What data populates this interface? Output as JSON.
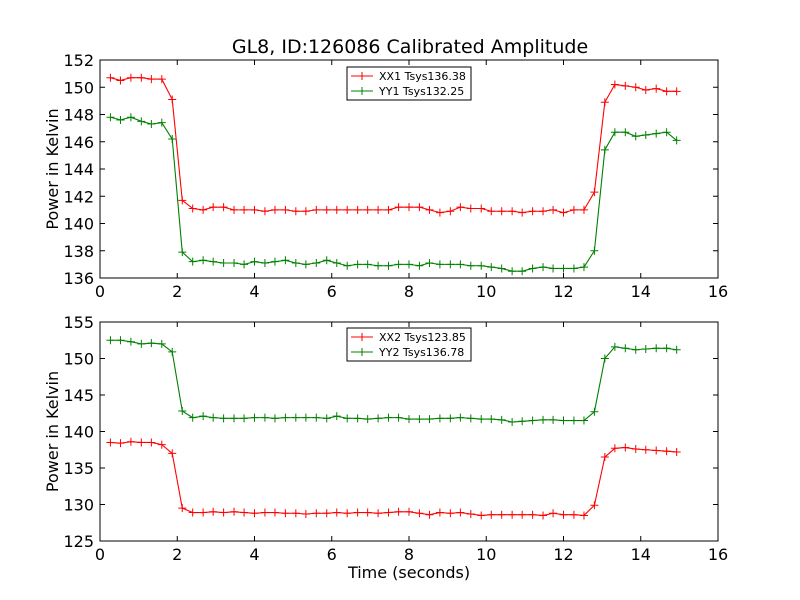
{
  "title": "GL8, ID:126086 Calibrated Amplitude",
  "chart_data": [
    {
      "type": "line",
      "title": "GL8, ID:126086 Calibrated Amplitude",
      "xlabel": "",
      "ylabel": "Power in Kelvin",
      "xlim": [
        0,
        16
      ],
      "ylim": [
        136,
        152
      ],
      "xticks": [
        "0",
        "2",
        "4",
        "6",
        "8",
        "10",
        "12",
        "14",
        "16"
      ],
      "yticks": [
        "136",
        "138",
        "140",
        "142",
        "144",
        "146",
        "148",
        "150",
        "152"
      ],
      "grid": false,
      "legend": "top-center",
      "x": [
        0.27,
        0.53,
        0.8,
        1.07,
        1.33,
        1.6,
        1.87,
        2.13,
        2.4,
        2.67,
        2.93,
        3.2,
        3.47,
        3.73,
        4.0,
        4.27,
        4.53,
        4.8,
        5.07,
        5.33,
        5.6,
        5.87,
        6.13,
        6.4,
        6.67,
        6.93,
        7.2,
        7.47,
        7.73,
        8.0,
        8.27,
        8.53,
        8.8,
        9.07,
        9.33,
        9.6,
        9.87,
        10.13,
        10.4,
        10.67,
        10.93,
        11.2,
        11.47,
        11.73,
        12.0,
        12.27,
        12.53,
        12.8,
        13.07,
        13.33,
        13.6,
        13.87,
        14.13,
        14.4,
        14.67,
        14.93
      ],
      "series": [
        {
          "name": "XX1 Tsys136.38",
          "color": "#ff0000",
          "values": [
            150.7,
            150.5,
            150.7,
            150.7,
            150.6,
            150.6,
            149.1,
            141.7,
            141.1,
            141.0,
            141.2,
            141.2,
            141.0,
            141.0,
            141.0,
            140.9,
            141.0,
            141.0,
            140.9,
            140.9,
            141.0,
            141.0,
            141.0,
            141.0,
            141.0,
            141.0,
            141.0,
            141.0,
            141.2,
            141.2,
            141.2,
            141.0,
            140.8,
            140.9,
            141.2,
            141.1,
            141.1,
            140.9,
            140.9,
            140.9,
            140.8,
            140.9,
            140.9,
            141.0,
            140.8,
            141.0,
            141.0,
            142.3,
            148.9,
            150.2,
            150.1,
            150.0,
            149.8,
            149.9,
            149.7,
            149.7
          ]
        },
        {
          "name": "YY1 Tsys132.25",
          "color": "#008000",
          "values": [
            147.8,
            147.6,
            147.8,
            147.5,
            147.3,
            147.4,
            146.2,
            137.9,
            137.2,
            137.3,
            137.2,
            137.1,
            137.1,
            137.0,
            137.2,
            137.1,
            137.2,
            137.3,
            137.1,
            137.0,
            137.1,
            137.3,
            137.1,
            136.9,
            137.0,
            137.0,
            136.9,
            136.9,
            137.0,
            137.0,
            136.9,
            137.1,
            137.0,
            137.0,
            137.0,
            136.9,
            136.9,
            136.8,
            136.7,
            136.5,
            136.5,
            136.7,
            136.8,
            136.7,
            136.7,
            136.7,
            136.8,
            138.0,
            145.4,
            146.7,
            146.7,
            146.4,
            146.5,
            146.6,
            146.7,
            146.1
          ]
        }
      ]
    },
    {
      "type": "line",
      "title": "",
      "xlabel": "Time (seconds)",
      "ylabel": "Power in Kelvin",
      "xlim": [
        0,
        16
      ],
      "ylim": [
        125,
        155
      ],
      "xticks": [
        "0",
        "2",
        "4",
        "6",
        "8",
        "10",
        "12",
        "14",
        "16"
      ],
      "yticks": [
        "125",
        "130",
        "135",
        "140",
        "145",
        "150",
        "155"
      ],
      "grid": false,
      "legend": "top-center",
      "x": [
        0.27,
        0.53,
        0.8,
        1.07,
        1.33,
        1.6,
        1.87,
        2.13,
        2.4,
        2.67,
        2.93,
        3.2,
        3.47,
        3.73,
        4.0,
        4.27,
        4.53,
        4.8,
        5.07,
        5.33,
        5.6,
        5.87,
        6.13,
        6.4,
        6.67,
        6.93,
        7.2,
        7.47,
        7.73,
        8.0,
        8.27,
        8.53,
        8.8,
        9.07,
        9.33,
        9.6,
        9.87,
        10.13,
        10.4,
        10.67,
        10.93,
        11.2,
        11.47,
        11.73,
        12.0,
        12.27,
        12.53,
        12.8,
        13.07,
        13.33,
        13.6,
        13.87,
        14.13,
        14.4,
        14.67,
        14.93
      ],
      "series": [
        {
          "name": "XX2 Tsys123.85",
          "color": "#ff0000",
          "values": [
            138.5,
            138.4,
            138.6,
            138.5,
            138.5,
            138.2,
            137.0,
            129.5,
            128.9,
            128.9,
            129.0,
            128.9,
            129.0,
            128.9,
            128.8,
            128.9,
            128.9,
            128.8,
            128.8,
            128.7,
            128.8,
            128.8,
            128.9,
            128.8,
            128.9,
            128.9,
            128.8,
            128.9,
            129.0,
            129.0,
            128.8,
            128.6,
            128.9,
            128.8,
            128.9,
            128.7,
            128.5,
            128.6,
            128.6,
            128.6,
            128.6,
            128.6,
            128.5,
            128.8,
            128.6,
            128.6,
            128.5,
            129.9,
            136.5,
            137.7,
            137.8,
            137.6,
            137.5,
            137.4,
            137.3,
            137.2
          ]
        },
        {
          "name": "YY2 Tsys136.78",
          "color": "#008000",
          "values": [
            152.5,
            152.5,
            152.3,
            152.0,
            152.1,
            152.0,
            150.9,
            142.8,
            141.9,
            142.1,
            141.9,
            141.8,
            141.8,
            141.8,
            141.9,
            141.9,
            141.8,
            141.9,
            141.9,
            141.9,
            141.9,
            141.8,
            142.1,
            141.8,
            141.8,
            141.7,
            141.8,
            141.9,
            141.9,
            141.7,
            141.7,
            141.7,
            141.8,
            141.8,
            141.9,
            141.8,
            141.7,
            141.7,
            141.6,
            141.3,
            141.4,
            141.5,
            141.6,
            141.6,
            141.5,
            141.5,
            141.5,
            142.7,
            150.0,
            151.6,
            151.4,
            151.2,
            151.3,
            151.4,
            151.4,
            151.2
          ]
        }
      ]
    }
  ]
}
